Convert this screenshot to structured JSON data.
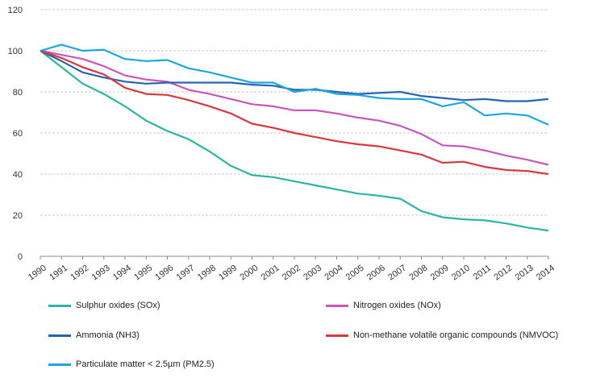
{
  "chart_data": {
    "type": "line",
    "title": "",
    "xlabel": "",
    "ylabel": "",
    "ylim": [
      0,
      120
    ],
    "yticks": [
      0,
      20,
      40,
      60,
      80,
      100,
      120
    ],
    "grid": "horizontal dashed",
    "legend_position": "bottom",
    "x": [
      "1990",
      "1991",
      "1992",
      "1993",
      "1994",
      "1995",
      "1996",
      "1997",
      "1998",
      "1999",
      "2000",
      "2001",
      "2002",
      "2003",
      "2004",
      "2005",
      "2006",
      "2007",
      "2008",
      "2009",
      "2010",
      "2011",
      "2012",
      "2013",
      "2014"
    ],
    "series": [
      {
        "name": "Sulphur oxides (SOx)",
        "color": "#2bb5a3",
        "values": [
          100,
          92,
          84,
          79,
          73,
          66,
          61,
          57,
          51,
          44,
          39.5,
          38.5,
          36.5,
          34.5,
          32.5,
          30.5,
          29.5,
          28,
          22,
          19,
          18,
          17.5,
          16,
          14,
          12.5
        ]
      },
      {
        "name": "Nitrogen oxides (NOx)",
        "color": "#c956b8",
        "values": [
          100,
          98,
          96,
          92.5,
          88,
          86,
          85,
          81,
          79,
          76.5,
          74,
          73,
          71,
          71,
          69.5,
          67.5,
          66,
          63.5,
          59.5,
          54,
          53.5,
          51.5,
          49,
          47,
          44.5
        ]
      },
      {
        "name": "Ammonia (NH3)",
        "color": "#2565b0",
        "values": [
          100,
          95,
          89.5,
          87,
          85,
          84,
          84.5,
          84.5,
          84.5,
          84.5,
          83.5,
          83,
          81,
          81,
          80,
          79,
          79.5,
          80,
          78,
          77,
          76,
          76.5,
          75.5,
          75.5,
          76.5
        ]
      },
      {
        "name": "Non-methane volatile organic compounds (NMVOC)",
        "color": "#d7393d",
        "values": [
          100,
          96.5,
          92,
          88.5,
          82,
          79,
          78.5,
          76,
          73,
          69.5,
          64.5,
          62.5,
          60,
          58,
          56,
          54.5,
          53.5,
          51.5,
          49.5,
          45.5,
          46,
          43.5,
          42,
          41.5,
          40
        ]
      },
      {
        "name": "Particulate matter < 2.5µm (PM2.5)",
        "color": "#1da7e1",
        "values": [
          100,
          103,
          100,
          100.5,
          96,
          95,
          95.5,
          91.5,
          89.5,
          87,
          84.5,
          84.5,
          80,
          81.5,
          79,
          78.5,
          77,
          76.5,
          76.5,
          73,
          75,
          68.5,
          69.5,
          68.5,
          64
        ]
      }
    ]
  }
}
